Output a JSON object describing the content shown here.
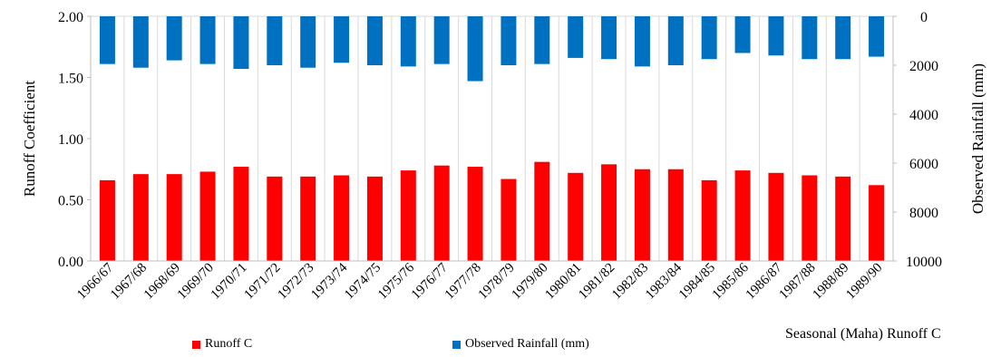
{
  "chart_data": {
    "type": "bar",
    "categories": [
      "1966/67",
      "1967/68",
      "1968/69",
      "1969/70",
      "1970/71",
      "1971/72",
      "1972/73",
      "1973/74",
      "1974/75",
      "1975/76",
      "1976/77",
      "1977/78",
      "1978/79",
      "1979/80",
      "1980/81",
      "1981/82",
      "1982/83",
      "1983/84",
      "1984/85",
      "1985/86",
      "1986/87",
      "1987/88",
      "1988/89",
      "1989/90"
    ],
    "series": [
      {
        "name": "Runoff C",
        "axis": "left",
        "color": "#ff0000",
        "values": [
          0.66,
          0.71,
          0.71,
          0.73,
          0.77,
          0.69,
          0.69,
          0.7,
          0.69,
          0.74,
          0.78,
          0.77,
          0.67,
          0.81,
          0.72,
          0.79,
          0.75,
          0.75,
          0.66,
          0.74,
          0.72,
          0.7,
          0.69,
          0.62
        ]
      },
      {
        "name": "Observed Rainfall (mm)",
        "axis": "right",
        "color": "#0070c0",
        "values": [
          1950,
          2100,
          1800,
          1950,
          2150,
          2000,
          2100,
          1900,
          2000,
          2050,
          1950,
          2650,
          2000,
          1950,
          1700,
          1750,
          2050,
          2000,
          1750,
          1500,
          1600,
          1750,
          1750,
          1650
        ]
      }
    ],
    "left_axis": {
      "label": "Runoff Coefficient",
      "range": [
        0,
        2
      ],
      "ticks": [
        "0.00",
        "0.50",
        "1.00",
        "1.50",
        "2.00"
      ]
    },
    "right_axis": {
      "label": "Observed Rainfall (mm)",
      "range": [
        0,
        10000
      ],
      "reversed": true,
      "ticks": [
        "0",
        "2000",
        "4000",
        "6000",
        "8000",
        "10000"
      ]
    },
    "grid": "vertical",
    "legend": {
      "position": "bottom",
      "items": [
        "Runoff C",
        "Observed Rainfall (mm)"
      ]
    },
    "corner_note": "Seasonal (Maha) Runoff C"
  }
}
